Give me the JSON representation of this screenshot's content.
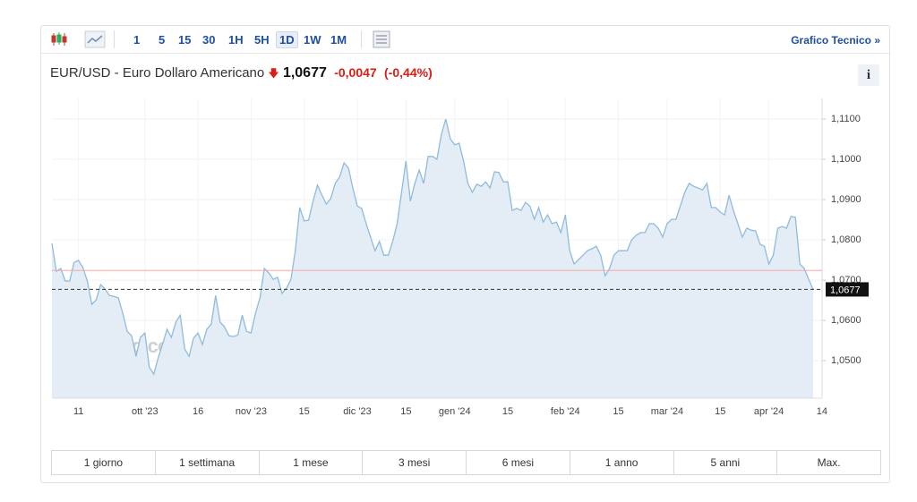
{
  "toolbar": {
    "timeframes": [
      "1",
      "5",
      "15",
      "30",
      "1H",
      "5H",
      "1D",
      "1W",
      "1M"
    ],
    "link": "Grafico Tecnico »"
  },
  "header": {
    "title": "EUR/USD - Euro Dollaro Americano",
    "price": "1,0677",
    "change": "-0,0047",
    "change_pct": "(-0,44%)"
  },
  "chart_data": {
    "type": "line",
    "watermark": "Investing.com",
    "categories": [
      null,
      null,
      null,
      null,
      null,
      null,
      "11",
      null,
      null,
      null,
      null,
      null,
      null,
      null,
      null,
      null,
      null,
      null,
      null,
      null,
      null,
      "ott '23",
      null,
      null,
      null,
      null,
      null,
      null,
      null,
      null,
      null,
      null,
      null,
      "16",
      null,
      null,
      null,
      null,
      null,
      null,
      null,
      null,
      null,
      null,
      null,
      "nov '23",
      null,
      null,
      null,
      null,
      null,
      null,
      null,
      null,
      null,
      null,
      null,
      "15",
      null,
      null,
      null,
      null,
      null,
      null,
      null,
      null,
      null,
      null,
      null,
      "dic '23",
      null,
      null,
      null,
      null,
      null,
      null,
      null,
      null,
      null,
      null,
      "15",
      null,
      null,
      null,
      null,
      null,
      null,
      null,
      null,
      null,
      null,
      "gen '24",
      null,
      null,
      null,
      null,
      null,
      null,
      null,
      null,
      null,
      null,
      null,
      "15",
      null,
      null,
      null,
      null,
      null,
      null,
      null,
      null,
      null,
      null,
      null,
      null,
      "feb '24",
      null,
      null,
      null,
      null,
      null,
      null,
      null,
      null,
      null,
      null,
      null,
      "15",
      null,
      null,
      null,
      null,
      null,
      null,
      null,
      null,
      null,
      null,
      "mar '24",
      null,
      null,
      null,
      null,
      null,
      null,
      null,
      null,
      null,
      null,
      null,
      "15",
      null,
      null,
      null,
      null,
      null,
      null,
      null,
      null,
      null,
      null,
      "apr '24",
      null,
      null,
      null,
      null,
      null,
      null,
      null,
      null,
      null,
      null,
      null,
      "14"
    ],
    "series": [
      {
        "name": "EUR/USD",
        "color": "#8fbbdd",
        "fill": "#e4edf6",
        "values": [
          1.0791,
          1.0722,
          1.0729,
          1.0698,
          1.0698,
          1.0744,
          1.0749,
          1.0731,
          1.0698,
          1.064,
          1.0651,
          1.0689,
          1.0678,
          1.0662,
          1.066,
          1.0656,
          1.0618,
          1.0573,
          1.0562,
          1.0511,
          1.0558,
          1.0569,
          1.0484,
          1.0467,
          1.0507,
          1.054,
          1.0578,
          1.0558,
          1.0596,
          1.0613,
          1.0529,
          1.0511,
          1.0556,
          1.0569,
          1.054,
          1.0578,
          1.0591,
          1.0662,
          1.0596,
          1.0584,
          1.0562,
          1.056,
          1.0564,
          1.0613,
          1.0573,
          1.0569,
          1.0618,
          1.0656,
          1.0729,
          1.0718,
          1.0702,
          1.0707,
          1.0667,
          1.068,
          1.0702,
          1.0773,
          1.088,
          1.0847,
          1.0849,
          1.0896,
          1.0936,
          1.0911,
          1.0889,
          1.0902,
          1.094,
          1.0956,
          1.0991,
          1.0978,
          1.0929,
          1.0884,
          1.0878,
          1.084,
          1.0807,
          1.0773,
          1.0796,
          1.0762,
          1.0762,
          1.0796,
          1.084,
          1.0918,
          1.0996,
          1.0896,
          1.094,
          1.0973,
          1.094,
          1.1007,
          1.1007,
          1.1,
          1.1062,
          1.11,
          1.1051,
          1.1036,
          1.104,
          1.0996,
          1.094,
          1.0918,
          1.0938,
          1.0933,
          1.0944,
          1.0929,
          1.0969,
          1.0967,
          1.0944,
          1.0944,
          1.0873,
          1.0878,
          1.0873,
          1.0893,
          1.0884,
          1.0851,
          1.088,
          1.0844,
          1.0862,
          1.084,
          1.0844,
          1.0818,
          1.0862,
          1.0773,
          1.074,
          1.0751,
          1.0762,
          1.0773,
          1.0778,
          1.0784,
          1.0762,
          1.0711,
          1.0729,
          1.0762,
          1.0773,
          1.0773,
          1.0773,
          1.08,
          1.0811,
          1.0818,
          1.0818,
          1.084,
          1.084,
          1.0829,
          1.0807,
          1.084,
          1.0851,
          1.0851,
          1.0884,
          1.0918,
          1.094,
          1.0933,
          1.0929,
          1.0924,
          1.094,
          1.088,
          1.088,
          1.0869,
          1.0862,
          1.0911,
          1.0873,
          1.084,
          1.0807,
          1.0829,
          1.0824,
          1.0822,
          1.0789,
          1.0784,
          1.074,
          1.0762,
          1.0829,
          1.0833,
          1.0829,
          1.0858,
          1.0856,
          1.074,
          1.0729,
          1.0702,
          1.0677,
          null,
          null
        ]
      }
    ],
    "ylim": [
      1.0407,
      1.1151
    ],
    "yticks": [
      {
        "value": 1.05,
        "label": "1,0500"
      },
      {
        "value": 1.06,
        "label": "1,0600"
      },
      {
        "value": 1.07,
        "label": "1,0700"
      },
      {
        "value": 1.08,
        "label": "1,0800"
      },
      {
        "value": 1.09,
        "label": "1,0900"
      },
      {
        "value": 1.1,
        "label": "1,1000"
      },
      {
        "value": 1.11,
        "label": "1,1100"
      }
    ],
    "last_price": {
      "value": 1.0677,
      "label": "1,0677"
    },
    "reference_line": {
      "value": 1.0724,
      "color": "#f5a9a9"
    },
    "grid": true
  },
  "ranges": [
    "1 giorno",
    "1 settimana",
    "1 mese",
    "3 mesi",
    "6 mesi",
    "1 anno",
    "5 anni",
    "Max."
  ]
}
